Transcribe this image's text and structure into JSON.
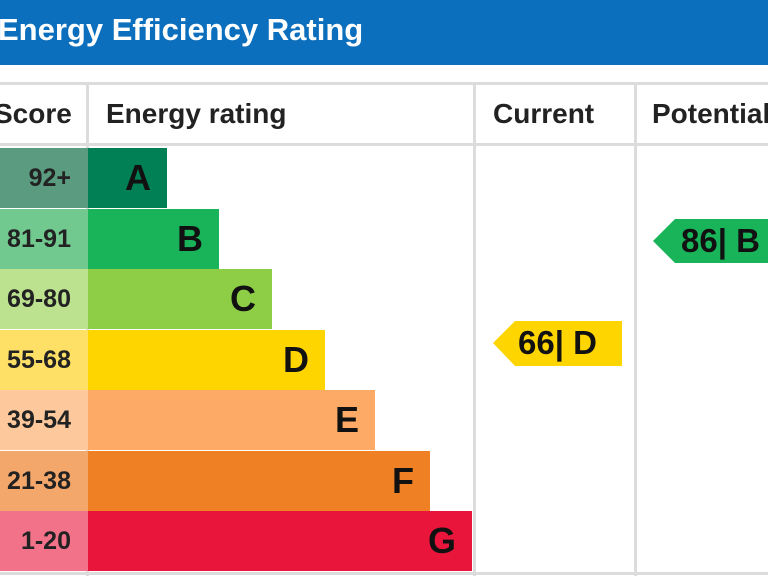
{
  "header": {
    "title": "Energy Efficiency Rating"
  },
  "columns": [
    "Score",
    "Energy rating",
    "Current",
    "Potential"
  ],
  "bands": [
    {
      "score": "92+",
      "letter": "A",
      "color": "#008054",
      "score_color": "#5b9c80"
    },
    {
      "score": "81-91",
      "letter": "B",
      "color": "#19b459",
      "score_color": "#72c98f"
    },
    {
      "score": "69-80",
      "letter": "C",
      "color": "#8dce46",
      "score_color": "#bce28f"
    },
    {
      "score": "55-68",
      "letter": "D",
      "color": "#ffd500",
      "score_color": "#ffe066"
    },
    {
      "score": "39-54",
      "letter": "E",
      "color": "#fcaa65",
      "score_color": "#fdc99c"
    },
    {
      "score": "21-38",
      "letter": "F",
      "color": "#ef8023",
      "score_color": "#f4a76b"
    },
    {
      "score": "1-20",
      "letter": "G",
      "color": "#e9153b",
      "score_color": "#f27389"
    }
  ],
  "current": {
    "label": "66| D",
    "color": "#ffd500"
  },
  "potential": {
    "label": "86| B",
    "color": "#19b459"
  }
}
